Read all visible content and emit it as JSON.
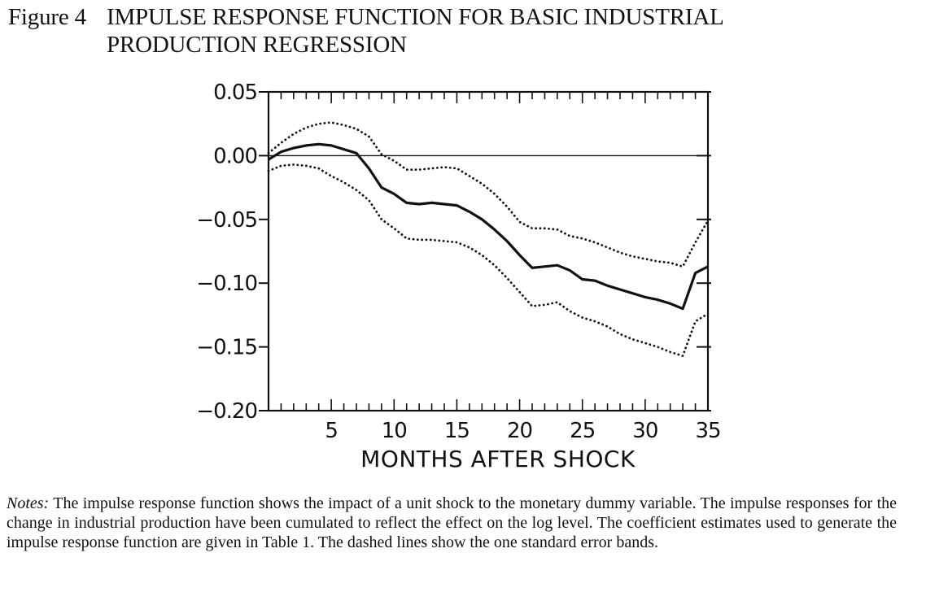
{
  "figure": {
    "label": "Figure 4",
    "title_line1": "IMPULSE RESPONSE FUNCTION FOR BASIC INDUSTRIAL",
    "title_line2": "PRODUCTION REGRESSION"
  },
  "notes": {
    "lead": "Notes:",
    "text": "The impulse response function shows the impact of a unit shock to the monetary dummy variable. The impulse responses for the change in industrial production have been cumulated to reflect the effect on the log level. The coefficient estimates used to generate the impulse response function are given in Table 1. The dashed lines show the one standard error bands."
  },
  "chart_data": {
    "type": "line",
    "title": "",
    "xlabel": "MONTHS AFTER SHOCK",
    "ylabel": "",
    "xlim": [
      0,
      35
    ],
    "ylim": [
      -0.2,
      0.05
    ],
    "x_ticks": [
      5,
      10,
      15,
      20,
      25,
      30,
      35
    ],
    "x_tick_labels": [
      "5",
      "10",
      "15",
      "20",
      "25",
      "30",
      "35"
    ],
    "y_ticks": [
      0.05,
      0.0,
      -0.05,
      -0.1,
      -0.15,
      -0.2
    ],
    "y_tick_labels": [
      "0.05",
      "0.00",
      "−0.05",
      "−0.10",
      "−0.15",
      "−0.20"
    ],
    "zero_line": true,
    "grid": false,
    "x": [
      0,
      1,
      2,
      3,
      4,
      5,
      6,
      7,
      8,
      9,
      10,
      11,
      12,
      13,
      14,
      15,
      16,
      17,
      18,
      19,
      20,
      21,
      22,
      23,
      24,
      25,
      26,
      27,
      28,
      29,
      30,
      31,
      32,
      33,
      34,
      35
    ],
    "series": [
      {
        "style": "solid",
        "values": [
          -0.003,
          0.003,
          0.006,
          0.008,
          0.009,
          0.008,
          0.005,
          0.002,
          -0.01,
          -0.025,
          -0.03,
          -0.037,
          -0.038,
          -0.037,
          -0.038,
          -0.039,
          -0.044,
          -0.05,
          -0.058,
          -0.067,
          -0.078,
          -0.088,
          -0.087,
          -0.086,
          -0.09,
          -0.097,
          -0.098,
          -0.102,
          -0.105,
          -0.108,
          -0.111,
          -0.113,
          -0.116,
          -0.12,
          -0.092,
          -0.087
        ]
      },
      {
        "style": "dotted",
        "values": [
          0.002,
          0.01,
          0.017,
          0.022,
          0.025,
          0.026,
          0.024,
          0.021,
          0.015,
          0.001,
          -0.004,
          -0.011,
          -0.011,
          -0.01,
          -0.009,
          -0.01,
          -0.016,
          -0.022,
          -0.03,
          -0.04,
          -0.052,
          -0.057,
          -0.057,
          -0.058,
          -0.063,
          -0.065,
          -0.068,
          -0.072,
          -0.076,
          -0.079,
          -0.081,
          -0.083,
          -0.084,
          -0.087,
          -0.068,
          -0.051
        ]
      },
      {
        "style": "dotted",
        "values": [
          -0.012,
          -0.008,
          -0.007,
          -0.008,
          -0.01,
          -0.016,
          -0.021,
          -0.027,
          -0.035,
          -0.05,
          -0.057,
          -0.065,
          -0.066,
          -0.066,
          -0.067,
          -0.068,
          -0.072,
          -0.078,
          -0.086,
          -0.096,
          -0.107,
          -0.118,
          -0.117,
          -0.115,
          -0.122,
          -0.127,
          -0.13,
          -0.134,
          -0.14,
          -0.144,
          -0.147,
          -0.15,
          -0.154,
          -0.157,
          -0.13,
          -0.124
        ]
      }
    ]
  }
}
